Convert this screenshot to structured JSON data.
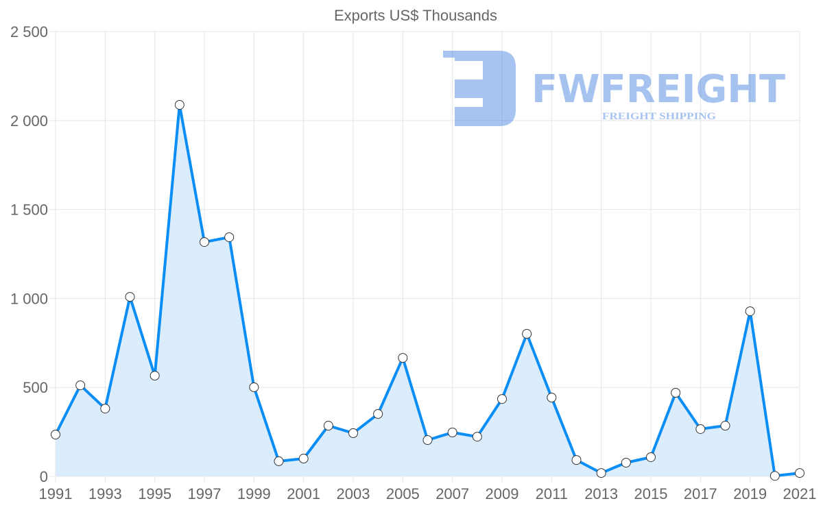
{
  "chart_data": {
    "type": "line",
    "title": "Exports US$ Thousands",
    "xlabel": "",
    "ylabel": "",
    "x": [
      1991,
      1992,
      1993,
      1994,
      1995,
      1996,
      1997,
      1998,
      1999,
      2000,
      2001,
      2002,
      2003,
      2004,
      2005,
      2006,
      2007,
      2008,
      2009,
      2010,
      2011,
      2012,
      2013,
      2014,
      2015,
      2016,
      2017,
      2018,
      2019,
      2020,
      2021
    ],
    "series": [
      {
        "name": "Exports US$ Thousands",
        "values": [
          235,
          512,
          381,
          1009,
          566,
          2088,
          1317,
          1344,
          501,
          85,
          100,
          285,
          243,
          351,
          666,
          204,
          247,
          223,
          435,
          801,
          443,
          92,
          19,
          77,
          108,
          470,
          266,
          285,
          928,
          3,
          19
        ]
      }
    ],
    "xticks": [
      "1991",
      "1993",
      "1995",
      "1997",
      "1999",
      "2001",
      "2003",
      "2005",
      "2007",
      "2009",
      "2011",
      "2013",
      "2015",
      "2017",
      "2019",
      "2021"
    ],
    "yticks": [
      "0",
      "500",
      "1 000",
      "1 500",
      "2 000",
      "2 500"
    ],
    "ylim": [
      0,
      2500
    ],
    "xlim": [
      1991,
      2021
    ],
    "grid": true,
    "legend": "none",
    "colors": {
      "line": "#0a8ef5",
      "fill": "#d9ecfc",
      "grid": "#e5e5e5"
    }
  },
  "watermark": {
    "brand": "FWFREIGHT",
    "tagline": "FREIGHT SHIPPING"
  }
}
